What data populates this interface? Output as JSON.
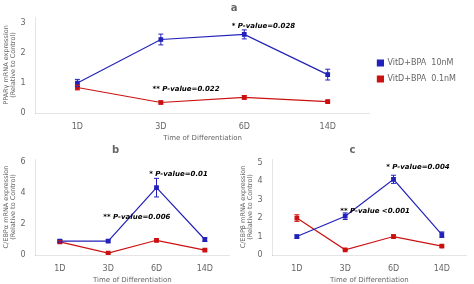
{
  "chart_data": [
    {
      "type": "line",
      "title": "a",
      "xlabel": "Time of Differentiation",
      "ylabel": "PPARγ mRNA expression\n(Relative to Control)",
      "categories": [
        "1D",
        "3D",
        "6D",
        "14D"
      ],
      "series": [
        {
          "name": "VitD+BPA  10nM",
          "color": "#2222bb",
          "marker": "square",
          "values": [
            1.0,
            2.45,
            2.62,
            1.28
          ],
          "errors": [
            0.12,
            0.18,
            0.15,
            0.18
          ]
        },
        {
          "name": "VitD+BPA  0.1nM",
          "color": "#cc1111",
          "marker": "square",
          "values": [
            0.85,
            0.35,
            0.52,
            0.38
          ],
          "errors": [
            0.08,
            0.05,
            0.06,
            0.04
          ]
        }
      ],
      "ylim": [
        0,
        3.2
      ],
      "yticks": [
        0,
        1,
        2,
        3
      ],
      "grid": false,
      "legend": "right",
      "annotations": [
        {
          "text": "* P-value=0.028",
          "x": 1.85,
          "y": 2.85
        },
        {
          "text": "** P-value=0.022",
          "x": 0.9,
          "y": 0.72
        }
      ]
    },
    {
      "type": "line",
      "title": "b",
      "xlabel": "Time of Differentiation",
      "ylabel": "C/EBPα mRNA expression\n(Relative to Control)",
      "categories": [
        "1D",
        "3D",
        "6D",
        "14D"
      ],
      "series": [
        {
          "color": "#2222bb",
          "marker": "square",
          "values": [
            0.9,
            0.9,
            4.35,
            1.0
          ],
          "errors": [
            0.08,
            0.07,
            0.6,
            0.12
          ]
        },
        {
          "color": "#cc1111",
          "marker": "square",
          "values": [
            0.85,
            0.12,
            0.95,
            0.32
          ],
          "errors": [
            0.08,
            0.04,
            0.09,
            0.06
          ]
        }
      ],
      "ylim": [
        0,
        6.2
      ],
      "yticks": [
        0,
        2,
        4,
        6
      ],
      "grid": false,
      "annotations": [
        {
          "text": "* P-value=0.01",
          "x": 1.85,
          "y": 5.1
        },
        {
          "text": "** P-value=0.006",
          "x": 0.9,
          "y": 2.3
        }
      ]
    },
    {
      "type": "line",
      "title": "c",
      "xlabel": "Time of Differentiation",
      "ylabel": "C/EBPβ mRNA expression\n(Relative to Control)",
      "categories": [
        "1D",
        "3D",
        "6D",
        "14D"
      ],
      "series": [
        {
          "color": "#2222bb",
          "marker": "square",
          "values": [
            1.0,
            2.1,
            4.1,
            1.1
          ],
          "errors": [
            0.08,
            0.18,
            0.22,
            0.15
          ]
        },
        {
          "color": "#cc1111",
          "marker": "square",
          "values": [
            2.0,
            0.28,
            1.0,
            0.48
          ],
          "errors": [
            0.18,
            0.04,
            0.09,
            0.06
          ]
        }
      ],
      "ylim": [
        0,
        5.2
      ],
      "yticks": [
        0,
        1,
        2,
        3,
        4,
        5
      ],
      "grid": false,
      "annotations": [
        {
          "text": "* P-value=0.004",
          "x": 1.85,
          "y": 4.65
        },
        {
          "text": "** P-value <0.001",
          "x": 0.9,
          "y": 2.3
        }
      ]
    }
  ]
}
